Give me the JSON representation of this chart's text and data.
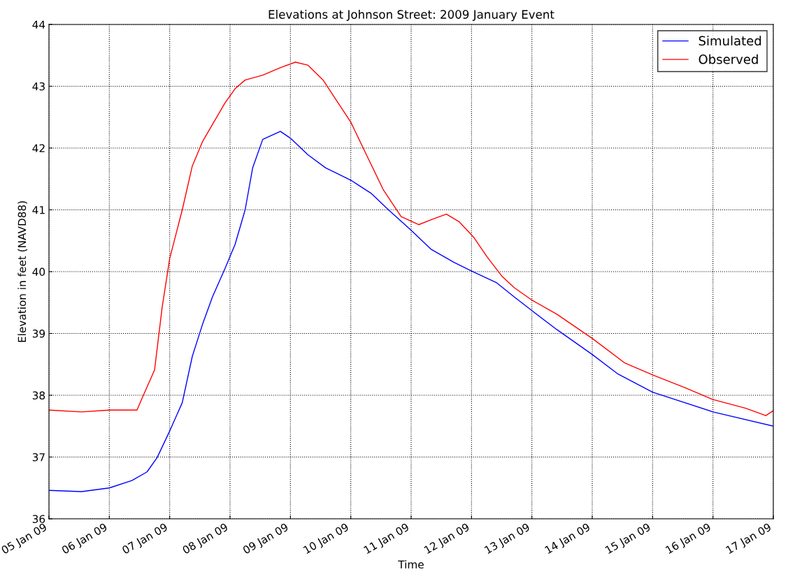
{
  "chart_data": {
    "type": "line",
    "title": "Elevations at Johnson Street: 2009 January Event",
    "xlabel": "Time",
    "ylabel": "Elevation in feet (NAVD88)",
    "xlim": [
      "2009-01-05",
      "2009-01-17"
    ],
    "ylim": [
      36,
      44
    ],
    "yticks": [
      36,
      37,
      38,
      39,
      40,
      41,
      42,
      43,
      44
    ],
    "xticks": [
      {
        "value": "2009-01-05",
        "label": "05 Jan 09"
      },
      {
        "value": "2009-01-06",
        "label": "06 Jan 09"
      },
      {
        "value": "2009-01-07",
        "label": "07 Jan 09"
      },
      {
        "value": "2009-01-08",
        "label": "08 Jan 09"
      },
      {
        "value": "2009-01-09",
        "label": "09 Jan 09"
      },
      {
        "value": "2009-01-10",
        "label": "10 Jan 09"
      },
      {
        "value": "2009-01-11",
        "label": "11 Jan 09"
      },
      {
        "value": "2009-01-12",
        "label": "12 Jan 09"
      },
      {
        "value": "2009-01-13",
        "label": "13 Jan 09"
      },
      {
        "value": "2009-01-14",
        "label": "14 Jan 09"
      },
      {
        "value": "2009-01-15",
        "label": "15 Jan 09"
      },
      {
        "value": "2009-01-16",
        "label": "16 Jan 09"
      },
      {
        "value": "2009-01-17",
        "label": "17 Jan 09"
      }
    ],
    "grid": true,
    "legend": "top right",
    "marker": "none",
    "line_style": "solid",
    "series": [
      {
        "name": "Simulated",
        "color": "#0000ff",
        "x": [
          "2009-01-05T00:00",
          "2009-01-05T13:00",
          "2009-01-06T00:00",
          "2009-01-06T09:00",
          "2009-01-06T15:00",
          "2009-01-06T19:00",
          "2009-01-07T00:00",
          "2009-01-07T05:00",
          "2009-01-07T09:00",
          "2009-01-07T13:00",
          "2009-01-07T17:00",
          "2009-01-07T22:00",
          "2009-01-08T02:00",
          "2009-01-08T06:00",
          "2009-01-08T09:00",
          "2009-01-08T13:00",
          "2009-01-08T20:00",
          "2009-01-09T00:00",
          "2009-01-09T07:00",
          "2009-01-09T14:00",
          "2009-01-10T00:00",
          "2009-01-10T08:00",
          "2009-01-10T15:00",
          "2009-01-11T00:00",
          "2009-01-11T08:00",
          "2009-01-11T17:00",
          "2009-01-12T00:00",
          "2009-01-12T10:00",
          "2009-01-12T17:00",
          "2009-01-13T00:00",
          "2009-01-13T10:00",
          "2009-01-14T00:00",
          "2009-01-14T10:00",
          "2009-01-15T00:00",
          "2009-01-16T00:00",
          "2009-01-17T00:00"
        ],
        "values": [
          36.46,
          36.44,
          36.5,
          36.62,
          36.76,
          36.99,
          37.42,
          37.88,
          38.63,
          39.14,
          39.59,
          40.05,
          40.44,
          41.0,
          41.68,
          42.14,
          42.27,
          42.16,
          41.89,
          41.68,
          41.48,
          41.27,
          41.0,
          40.67,
          40.36,
          40.15,
          40.01,
          39.82,
          39.59,
          39.37,
          39.06,
          38.66,
          38.35,
          38.05,
          37.73,
          37.5
        ]
      },
      {
        "name": "Observed",
        "color": "#ff0000",
        "x": [
          "2009-01-05T00:00",
          "2009-01-05T13:00",
          "2009-01-06T00:00",
          "2009-01-06T11:00",
          "2009-01-06T13:00",
          "2009-01-06T18:00",
          "2009-01-06T21:00",
          "2009-01-07T00:00",
          "2009-01-07T05:00",
          "2009-01-07T09:00",
          "2009-01-07T13:00",
          "2009-01-07T18:00",
          "2009-01-07T22:00",
          "2009-01-08T02:00",
          "2009-01-08T06:00",
          "2009-01-08T13:00",
          "2009-01-08T20:00",
          "2009-01-09T02:00",
          "2009-01-09T07:00",
          "2009-01-09T13:00",
          "2009-01-09T18:00",
          "2009-01-10T00:00",
          "2009-01-10T06:00",
          "2009-01-10T13:00",
          "2009-01-10T20:00",
          "2009-01-11T03:00",
          "2009-01-11T08:00",
          "2009-01-11T14:00",
          "2009-01-11T19:00",
          "2009-01-12T01:00",
          "2009-01-12T06:00",
          "2009-01-12T12:00",
          "2009-01-12T17:00",
          "2009-01-13T00:00",
          "2009-01-13T10:00",
          "2009-01-14T00:00",
          "2009-01-14T13:00",
          "2009-01-15T00:00",
          "2009-01-15T13:00",
          "2009-01-16T00:00",
          "2009-01-16T13:00",
          "2009-01-16T21:00",
          "2009-01-17T00:00"
        ],
        "values": [
          37.76,
          37.73,
          37.76,
          37.76,
          37.95,
          38.41,
          39.42,
          40.21,
          41.0,
          41.71,
          42.1,
          42.45,
          42.73,
          42.96,
          43.1,
          43.18,
          43.3,
          43.39,
          43.34,
          43.1,
          42.79,
          42.42,
          41.91,
          41.32,
          40.89,
          40.76,
          40.84,
          40.93,
          40.81,
          40.55,
          40.25,
          39.93,
          39.74,
          39.54,
          39.31,
          38.92,
          38.52,
          38.33,
          38.12,
          37.93,
          37.79,
          37.67,
          37.75
        ]
      }
    ]
  }
}
